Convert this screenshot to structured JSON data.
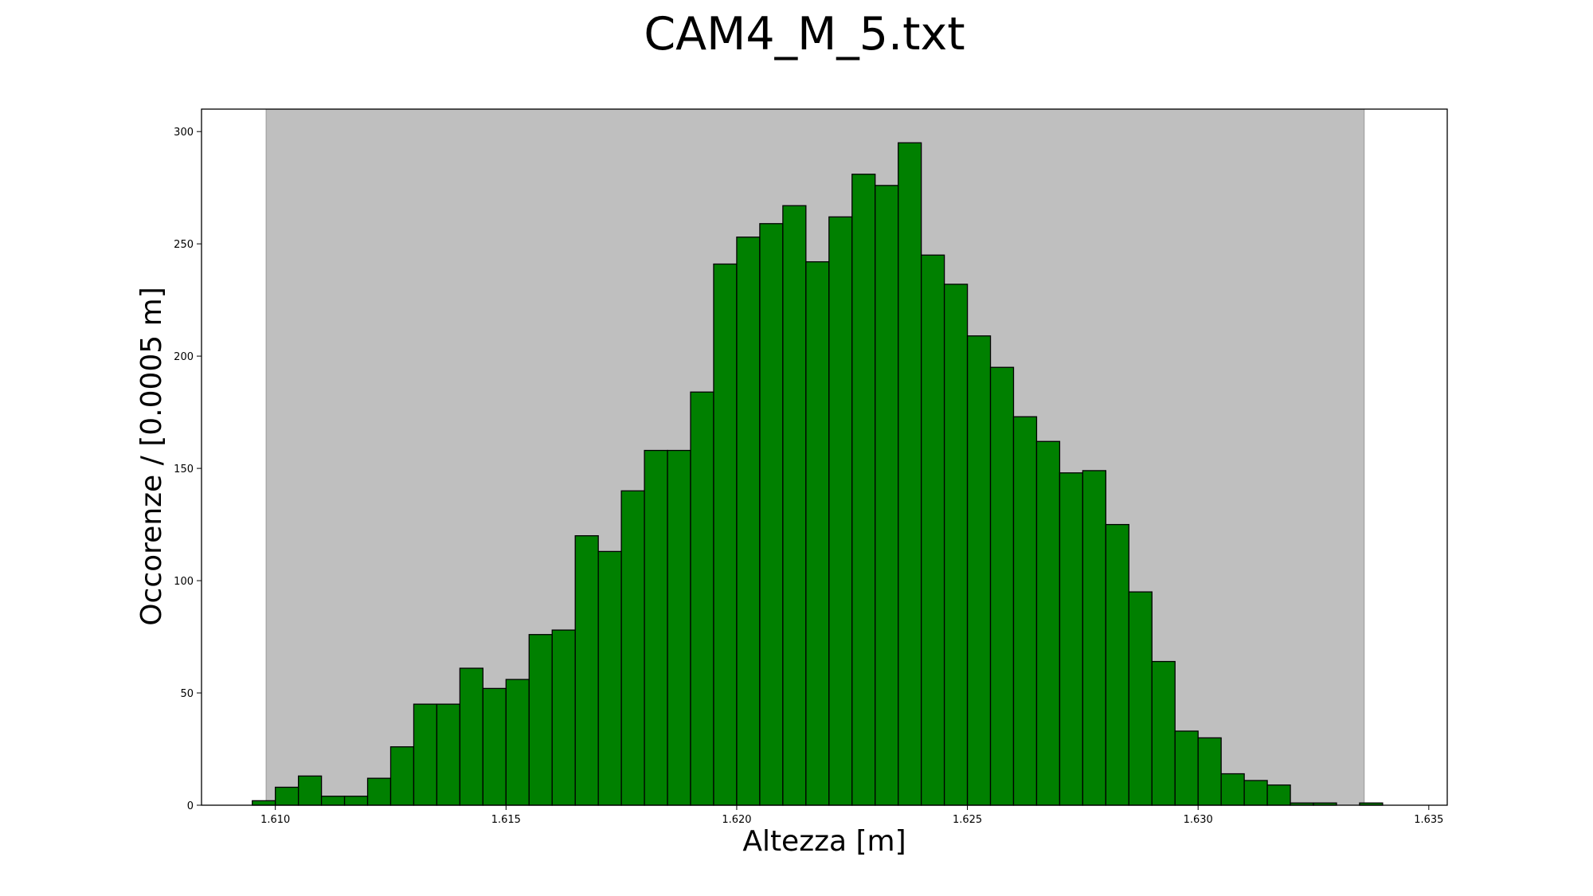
{
  "chart_data": {
    "type": "bar",
    "title": "CAM4_M_5.txt",
    "xlabel": "Altezza [m]",
    "ylabel": "Occorenze / [0.0005 m]",
    "xlim": [
      1.6084,
      1.6354
    ],
    "ylim": [
      0,
      310
    ],
    "x_ticks": [
      "1.610",
      "1.615",
      "1.620",
      "1.625",
      "1.630",
      "1.635"
    ],
    "y_ticks": [
      "0",
      "50",
      "100",
      "150",
      "200",
      "250",
      "300"
    ],
    "grid": false,
    "shaded_region": {
      "x_start": 1.6098,
      "x_end": 1.6336,
      "color": "#bfbfbf"
    },
    "bar_color": "#008000",
    "bin_width": 0.0005,
    "bin_start": 1.6095,
    "values": [
      2,
      8,
      13,
      4,
      4,
      12,
      26,
      45,
      45,
      61,
      52,
      56,
      76,
      78,
      120,
      113,
      140,
      158,
      158,
      184,
      241,
      253,
      259,
      267,
      242,
      262,
      281,
      276,
      295,
      245,
      232,
      209,
      195,
      173,
      162,
      148,
      149,
      125,
      95,
      64,
      33,
      30,
      14,
      11,
      9,
      1,
      1,
      0,
      1
    ]
  }
}
